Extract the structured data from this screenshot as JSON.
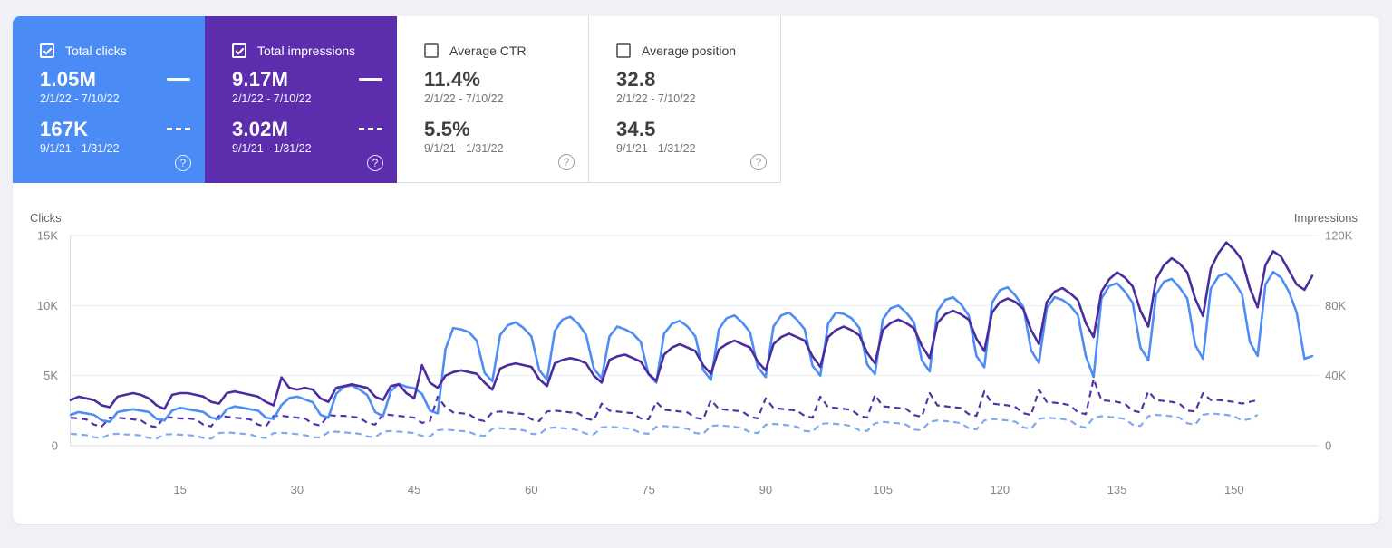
{
  "cards": [
    {
      "label": "Total clicks",
      "checked": true,
      "metrics": [
        {
          "value": "1.05M",
          "range": "2/1/22 - 7/10/22"
        },
        {
          "value": "167K",
          "range": "9/1/21 - 1/31/22"
        }
      ]
    },
    {
      "label": "Total impressions",
      "checked": true,
      "metrics": [
        {
          "value": "9.17M",
          "range": "2/1/22 - 7/10/22"
        },
        {
          "value": "3.02M",
          "range": "9/1/21 - 1/31/22"
        }
      ]
    },
    {
      "label": "Average CTR",
      "checked": false,
      "metrics": [
        {
          "value": "11.4%",
          "range": "2/1/22 - 7/10/22"
        },
        {
          "value": "5.5%",
          "range": "9/1/21 - 1/31/22"
        }
      ]
    },
    {
      "label": "Average position",
      "checked": false,
      "metrics": [
        {
          "value": "32.8",
          "range": "2/1/22 - 7/10/22"
        },
        {
          "value": "34.5",
          "range": "9/1/21 - 1/31/22"
        }
      ]
    }
  ],
  "icons": {
    "help_glyph": "?"
  },
  "chart": {
    "left_axis_title": "Clicks",
    "right_axis_title": "Impressions"
  },
  "chart_data": {
    "type": "line",
    "title": "Search performance: clicks and impressions, current vs previous period",
    "x_ticks": [
      15,
      30,
      45,
      60,
      75,
      90,
      105,
      120,
      135,
      150
    ],
    "x_unit": "day of period",
    "y_left": {
      "title": "Clicks",
      "tick_labels": [
        "15K",
        "10K",
        "5K",
        "0"
      ],
      "max_thousands": 15
    },
    "y_right": {
      "title": "Impressions",
      "tick_labels": [
        "120K",
        "80K",
        "40K",
        "0"
      ],
      "max_thousands": 120
    },
    "grid": true,
    "colors": {
      "clicks": "#4e8df6",
      "impressions": "#4b2c9f",
      "clicks_prev": "#7fa9f0",
      "impressions_prev": "#5533a6"
    },
    "series": [
      {
        "name": "Clicks 2/1/22 - 7/10/22",
        "axis": "left",
        "style": "solid",
        "color_key": "clicks",
        "unit": "thousands",
        "values": [
          2.2,
          2.4,
          2.3,
          2.2,
          1.8,
          1.7,
          2.4,
          2.5,
          2.6,
          2.5,
          2.4,
          1.9,
          1.8,
          2.5,
          2.7,
          2.6,
          2.5,
          2.4,
          2.0,
          1.9,
          2.6,
          2.8,
          2.7,
          2.6,
          2.5,
          2.0,
          1.9,
          2.9,
          3.4,
          3.5,
          3.3,
          3.1,
          2.2,
          2.0,
          3.7,
          4.2,
          4.3,
          4.0,
          3.6,
          2.4,
          2.1,
          3.9,
          4.4,
          4.2,
          4.1,
          3.7,
          2.5,
          2.3,
          6.9,
          8.4,
          8.3,
          8.1,
          7.5,
          5.2,
          4.6,
          7.9,
          8.6,
          8.8,
          8.4,
          7.8,
          5.4,
          4.7,
          8.2,
          9.0,
          9.2,
          8.7,
          7.9,
          5.5,
          4.8,
          7.8,
          8.5,
          8.3,
          8.0,
          7.4,
          5.1,
          4.5,
          8.0,
          8.7,
          8.9,
          8.5,
          7.8,
          5.4,
          4.7,
          8.3,
          9.1,
          9.3,
          8.8,
          8.1,
          5.6,
          4.9,
          8.5,
          9.3,
          9.5,
          9.0,
          8.3,
          5.7,
          5.0,
          8.7,
          9.5,
          9.4,
          9.1,
          8.4,
          5.8,
          5.1,
          9.0,
          9.8,
          10.0,
          9.5,
          8.8,
          6.1,
          5.3,
          9.6,
          10.4,
          10.6,
          10.1,
          9.3,
          6.4,
          5.6,
          10.2,
          11.1,
          11.3,
          10.7,
          9.9,
          6.8,
          5.9,
          9.8,
          10.6,
          10.4,
          10.0,
          9.3,
          6.4,
          4.9,
          10.5,
          11.4,
          11.6,
          11.0,
          10.2,
          7.0,
          6.1,
          10.8,
          11.7,
          11.9,
          11.3,
          10.5,
          7.2,
          6.2,
          11.2,
          12.1,
          12.3,
          11.7,
          10.8,
          7.4,
          6.4,
          11.5,
          12.4,
          12.0,
          11.0,
          9.5,
          6.2,
          6.4
        ]
      },
      {
        "name": "Impressions 2/1/22 - 7/10/22",
        "axis": "right",
        "style": "solid",
        "color_key": "impressions",
        "unit": "thousands",
        "values": [
          26,
          28,
          27,
          26,
          23,
          22,
          28,
          29,
          30,
          29,
          27,
          23,
          21,
          29,
          30,
          30,
          29,
          28,
          25,
          24,
          30,
          31,
          30,
          29,
          28,
          25,
          23,
          39,
          33,
          32,
          33,
          32,
          27,
          25,
          33,
          34,
          35,
          34,
          33,
          28,
          26,
          34,
          35,
          30,
          27,
          46,
          36,
          33,
          40,
          42,
          43,
          42,
          41,
          36,
          32,
          44,
          46,
          47,
          46,
          45,
          38,
          34,
          47,
          49,
          50,
          49,
          47,
          40,
          36,
          49,
          51,
          52,
          50,
          48,
          41,
          37,
          52,
          56,
          58,
          56,
          54,
          46,
          41,
          55,
          58,
          60,
          58,
          56,
          48,
          43,
          58,
          62,
          64,
          62,
          60,
          51,
          45,
          62,
          66,
          68,
          66,
          63,
          53,
          47,
          66,
          70,
          72,
          70,
          67,
          57,
          50,
          70,
          75,
          77,
          75,
          72,
          61,
          54,
          76,
          82,
          84,
          82,
          78,
          66,
          58,
          82,
          88,
          90,
          87,
          83,
          70,
          62,
          88,
          95,
          99,
          96,
          91,
          77,
          68,
          95,
          103,
          107,
          104,
          99,
          84,
          74,
          101,
          110,
          116,
          112,
          106,
          90,
          79,
          103,
          111,
          108,
          100,
          92,
          89,
          97
        ]
      },
      {
        "name": "Clicks 9/1/21 - 1/31/22",
        "axis": "left",
        "style": "dashed",
        "color_key": "clicks_prev",
        "unit": "thousands",
        "values": [
          0.85,
          0.8,
          0.75,
          0.6,
          0.55,
          0.8,
          0.85,
          0.8,
          0.78,
          0.72,
          0.55,
          0.5,
          0.8,
          0.82,
          0.78,
          0.75,
          0.7,
          0.55,
          0.5,
          0.9,
          0.95,
          0.9,
          0.85,
          0.8,
          0.6,
          0.55,
          0.9,
          0.92,
          0.88,
          0.82,
          0.75,
          0.6,
          0.58,
          0.95,
          1.0,
          0.95,
          0.9,
          0.85,
          0.65,
          0.6,
          1.0,
          1.05,
          1.0,
          0.95,
          0.9,
          0.7,
          0.65,
          1.1,
          1.15,
          1.1,
          1.05,
          1.0,
          0.75,
          0.7,
          1.2,
          1.25,
          1.2,
          1.15,
          1.1,
          0.85,
          0.8,
          1.25,
          1.3,
          1.25,
          1.2,
          1.1,
          0.85,
          0.8,
          1.3,
          1.35,
          1.3,
          1.25,
          1.15,
          0.9,
          0.85,
          1.35,
          1.4,
          1.35,
          1.3,
          1.2,
          0.9,
          0.85,
          1.4,
          1.45,
          1.4,
          1.35,
          1.25,
          0.95,
          0.9,
          1.5,
          1.55,
          1.5,
          1.45,
          1.35,
          1.05,
          1.0,
          1.55,
          1.6,
          1.55,
          1.5,
          1.4,
          1.1,
          1.05,
          1.6,
          1.7,
          1.65,
          1.6,
          1.5,
          1.15,
          1.1,
          1.7,
          1.8,
          1.75,
          1.7,
          1.6,
          1.25,
          1.15,
          1.8,
          1.9,
          1.85,
          1.8,
          1.7,
          1.3,
          1.2,
          1.9,
          2.0,
          1.95,
          1.9,
          1.8,
          1.4,
          1.3,
          2.0,
          2.1,
          2.05,
          2.0,
          1.9,
          1.5,
          1.4,
          2.1,
          2.2,
          2.15,
          2.1,
          2.0,
          1.6,
          1.5,
          2.2,
          2.3,
          2.25,
          2.2,
          2.1,
          1.8,
          1.9,
          2.2
        ]
      },
      {
        "name": "Impressions 9/1/21 - 1/31/22",
        "axis": "right",
        "style": "dashed",
        "color_key": "impressions_prev",
        "unit": "thousands",
        "values": [
          16,
          15.5,
          15,
          12,
          11,
          16,
          16,
          15.5,
          15,
          14.5,
          11.5,
          10.5,
          16.5,
          16,
          15.5,
          15.5,
          15,
          12,
          11,
          17,
          16.5,
          16,
          15.5,
          15,
          12,
          11,
          17,
          17,
          16.5,
          16,
          15.5,
          12.5,
          11.5,
          17.5,
          17,
          17,
          16.5,
          16,
          13,
          12,
          18,
          17.5,
          17,
          16.5,
          16,
          13,
          14,
          28,
          22,
          19,
          18.5,
          18,
          15,
          14,
          19,
          19.5,
          19,
          18.5,
          18,
          15,
          14,
          19.5,
          20,
          19.5,
          19,
          18.5,
          15.5,
          14.5,
          24,
          20,
          19.5,
          19,
          18.5,
          15.5,
          15,
          25,
          20.5,
          20,
          19.5,
          19,
          16,
          15,
          26,
          21,
          20.5,
          20,
          19.5,
          16.5,
          15.5,
          27,
          21.5,
          21,
          20.5,
          20,
          17,
          16,
          28,
          22,
          21.5,
          21,
          20.5,
          17,
          16,
          29,
          22.5,
          22,
          21.5,
          21,
          17.5,
          16.5,
          30,
          23,
          22.5,
          22,
          21.5,
          18,
          17,
          31,
          24,
          23.5,
          23,
          22,
          18.5,
          17.5,
          32,
          25,
          24.5,
          24,
          23,
          19,
          18,
          38,
          26,
          25.5,
          25,
          24,
          20,
          19,
          31,
          26,
          25.5,
          25,
          24,
          20,
          19.5,
          30,
          26,
          26,
          25.5,
          25,
          24,
          25,
          26
        ]
      }
    ]
  }
}
